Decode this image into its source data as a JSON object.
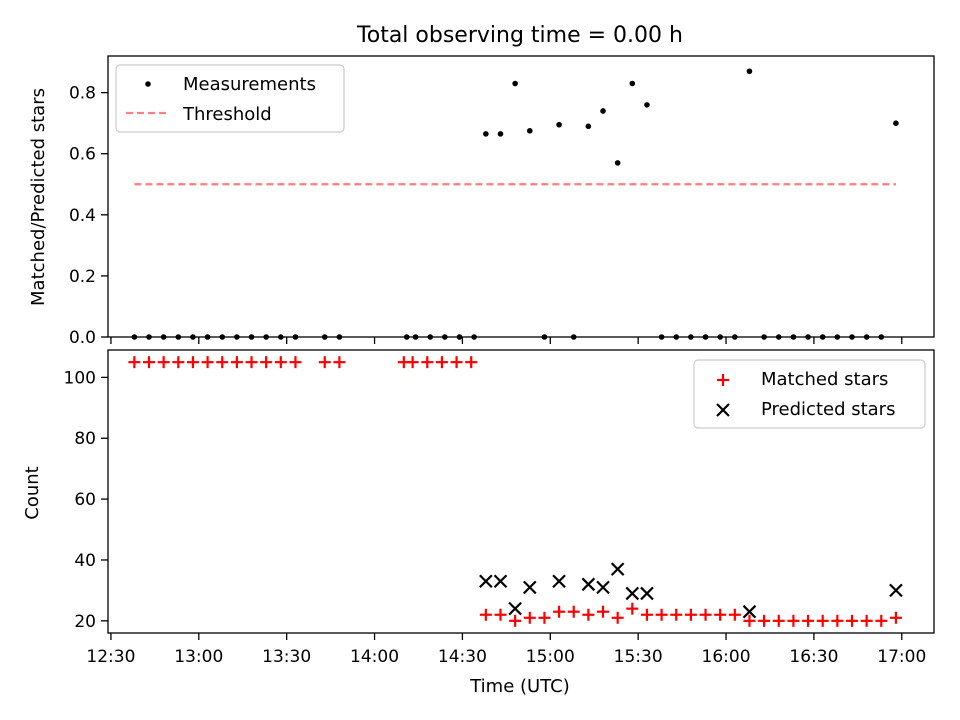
{
  "chart_data": [
    {
      "type": "scatter",
      "title": "Total observing time = 0.00 h",
      "ylabel": "Matched/Predicted stars",
      "xlabel": "",
      "ylim": [
        0,
        0.92
      ],
      "yticks": [
        0,
        0.2,
        0.4,
        0.6,
        0.8
      ],
      "ytick_labels": [
        "0.0",
        "0.2",
        "0.4",
        "0.6",
        "0.8"
      ],
      "grid": false,
      "legend_position": "top-left",
      "legend": [
        "Measurements",
        "Threshold"
      ],
      "measurements": {
        "x": [
          "12:38",
          "12:43",
          "12:48",
          "12:53",
          "12:58",
          "13:03",
          "13:08",
          "13:13",
          "13:18",
          "13:23",
          "13:28",
          "13:33",
          "13:43",
          "13:48",
          "14:11",
          "14:14",
          "14:19",
          "14:24",
          "14:29",
          "14:34",
          "14:38",
          "14:43",
          "14:48",
          "14:53",
          "14:58",
          "15:03",
          "15:08",
          "15:13",
          "15:18",
          "15:23",
          "15:28",
          "15:33",
          "15:38",
          "15:43",
          "15:48",
          "15:53",
          "15:58",
          "16:03",
          "16:08",
          "16:13",
          "16:18",
          "16:23",
          "16:28",
          "16:33",
          "16:38",
          "16:43",
          "16:48",
          "16:53",
          "16:58"
        ],
        "y": [
          0,
          0,
          0,
          0,
          0,
          0,
          0,
          0,
          0,
          0,
          0,
          0,
          0,
          0,
          0,
          0,
          0,
          0,
          0,
          0,
          0.665,
          0.665,
          0.83,
          0.675,
          0,
          0.695,
          0,
          0.69,
          0.74,
          0.57,
          0.83,
          0.76,
          0,
          0,
          0,
          0,
          0,
          0,
          0.87,
          0,
          0,
          0,
          0,
          0,
          0,
          0,
          0,
          0,
          0.7
        ],
        "x_override": {
          "index": [
            20,
            21,
            22,
            23,
            24,
            25,
            26,
            27,
            28,
            29,
            30,
            31,
            32,
            33,
            34,
            35,
            36,
            37,
            38
          ],
          "x": [
            "14:38",
            "14:43",
            "14:48",
            "14:53",
            "14:58",
            "15:03",
            "15:08",
            "15:13",
            "15:18",
            "15:23",
            "15:28",
            "15:33",
            "15:38",
            "15:43",
            "15:48",
            "15:53",
            "15:58",
            "16:03",
            "16:08"
          ]
        }
      },
      "threshold": {
        "x": [
          "12:38",
          "16:58"
        ],
        "y": 0.5
      }
    },
    {
      "type": "scatter",
      "title": "",
      "ylabel": "Count",
      "xlabel": "Time (UTC)",
      "ylim": [
        16,
        109
      ],
      "yticks": [
        20,
        40,
        60,
        80,
        100
      ],
      "ytick_labels": [
        "20",
        "40",
        "60",
        "80",
        "100"
      ],
      "xlim": [
        "12:29",
        "17:11"
      ],
      "xticks": [
        "12:30",
        "13:00",
        "13:30",
        "14:00",
        "14:30",
        "15:00",
        "15:30",
        "16:00",
        "16:30",
        "17:00"
      ],
      "xtick_labels": [
        "12:30",
        "13:00",
        "13:30",
        "14:00",
        "14:30",
        "15:00",
        "15:30",
        "16:00",
        "16:30",
        "17:00"
      ],
      "grid": false,
      "legend_position": "top-right",
      "legend": [
        "Matched stars",
        "Predicted stars"
      ],
      "matched": {
        "x": [
          "12:38",
          "12:43",
          "12:48",
          "12:53",
          "12:58",
          "13:03",
          "13:08",
          "13:13",
          "13:18",
          "13:23",
          "13:28",
          "13:33",
          "13:43",
          "13:48",
          "14:10",
          "14:13",
          "14:18",
          "14:23",
          "14:28",
          "14:33",
          "14:38",
          "14:43",
          "14:48",
          "14:53",
          "14:58",
          "15:03",
          "15:08",
          "15:13",
          "15:18",
          "15:23",
          "15:28",
          "15:33",
          "15:38",
          "15:43",
          "15:48",
          "15:53",
          "15:58",
          "16:03",
          "16:08",
          "16:13",
          "16:18",
          "16:23",
          "16:28",
          "16:33",
          "16:38",
          "16:43",
          "16:48",
          "16:53",
          "16:58"
        ],
        "y": [
          105,
          105,
          105,
          105,
          105,
          105,
          105,
          105,
          105,
          105,
          105,
          105,
          105,
          105,
          105,
          105,
          105,
          105,
          105,
          105,
          22,
          22,
          20,
          21,
          21,
          23,
          23,
          22,
          23,
          21,
          24,
          22,
          22,
          22,
          22,
          22,
          22,
          22,
          20,
          20,
          20,
          20,
          20,
          20,
          20,
          20,
          20,
          20,
          21
        ]
      },
      "predicted": {
        "x": [
          "14:38",
          "14:43",
          "14:48",
          "14:53",
          "15:03",
          "15:13",
          "15:18",
          "15:23",
          "15:28",
          "15:33",
          "16:08",
          "16:58"
        ],
        "y": [
          33,
          33,
          24,
          31,
          33,
          32,
          31,
          37,
          29,
          29,
          23,
          30
        ]
      }
    }
  ]
}
